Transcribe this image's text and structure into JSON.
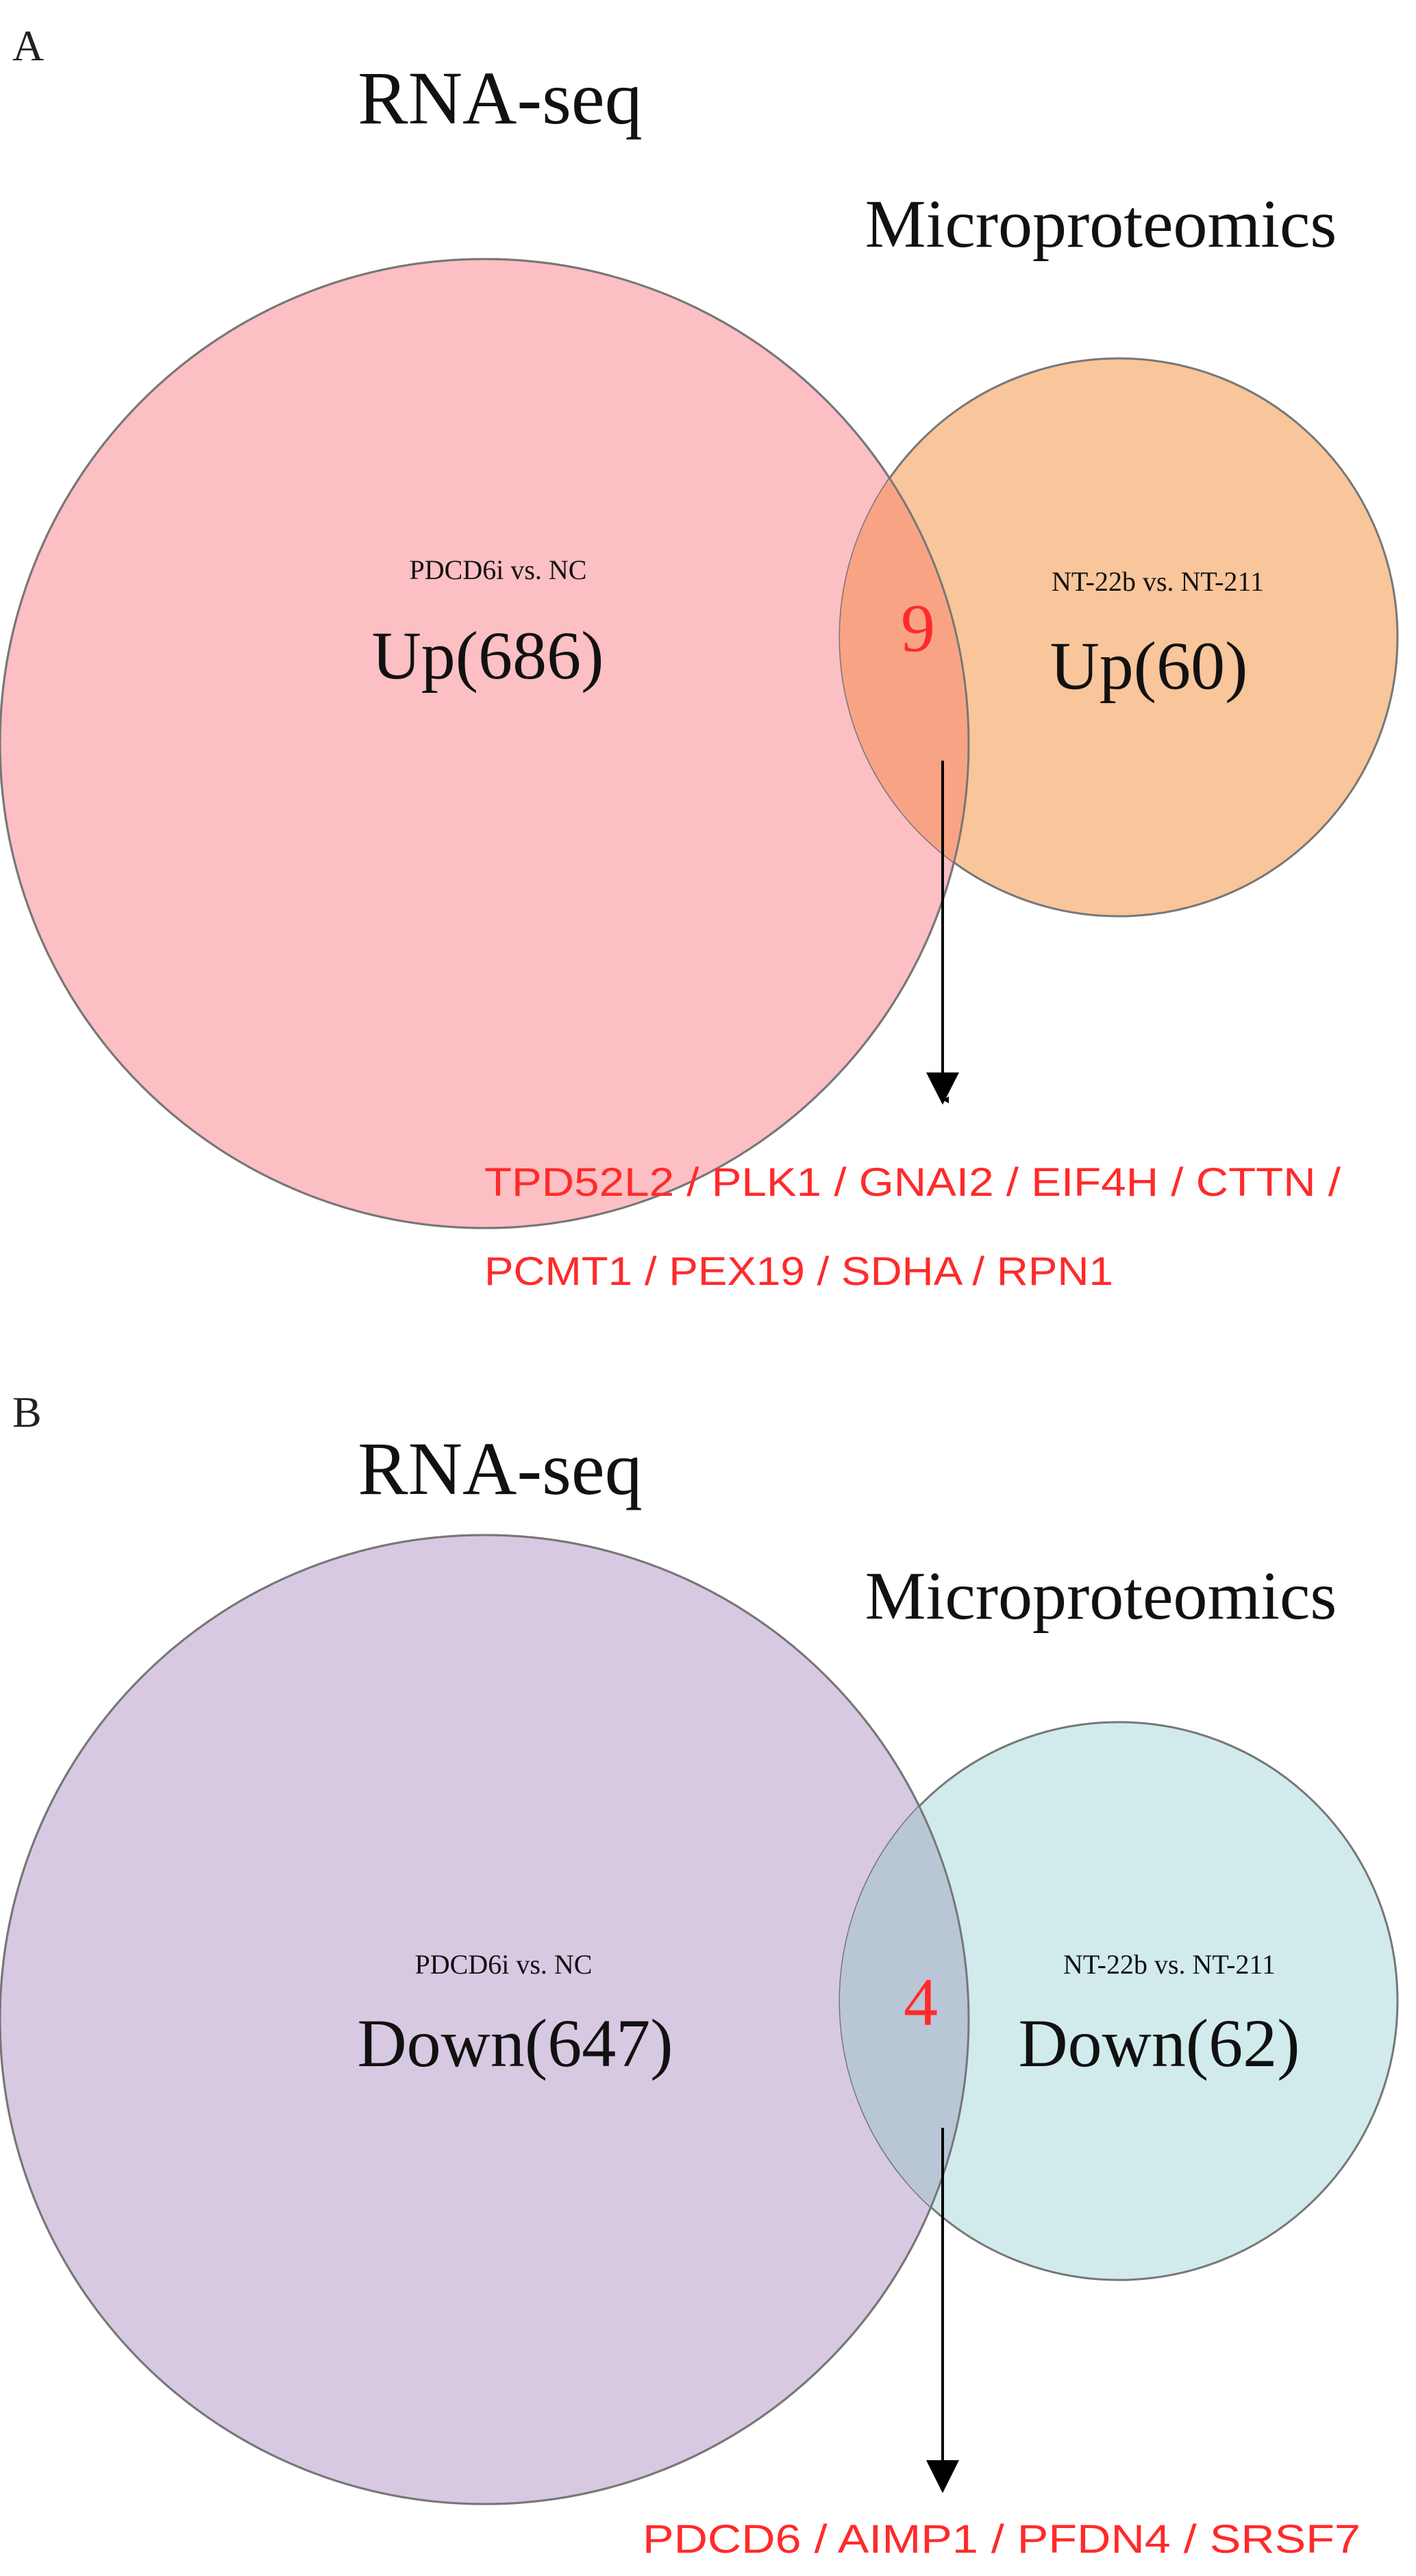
{
  "panels": [
    {
      "letter": "A",
      "set_left_title": "RNA-seq",
      "set_right_title": "Microproteomics",
      "left_subtitle": "PDCD6i vs. NC",
      "left_label": "Up(686)",
      "right_subtitle": "NT-22b vs. NT-211",
      "right_label": "Up(60)",
      "overlap_count": "9",
      "genes_line1": "TPD52L2 / PLK1 / GNAI2 / EIF4H / CTTN /",
      "genes_line2": "PCMT1 / PEX19 / SDHA / RPN1",
      "colors": {
        "left": "#fcbfc3",
        "right": "#f9c59a",
        "overlap": "#f8a484",
        "accent": "#ff2a2a"
      }
    },
    {
      "letter": "B",
      "set_left_title": "RNA-seq",
      "set_right_title": "Microproteomics",
      "left_subtitle": "PDCD6i vs. NC",
      "left_label": "Down(647)",
      "right_subtitle": "NT-22b vs. NT-211",
      "right_label": "Down(62)",
      "overlap_count": "4",
      "genes_line1": "PDCD6 / AIMP1 / PFDN4 / SRSF7",
      "colors": {
        "left": "#d8c9e2",
        "right": "#d1ebed",
        "overlap": "#b9c6d6",
        "accent": "#ff2a2a"
      }
    }
  ]
}
